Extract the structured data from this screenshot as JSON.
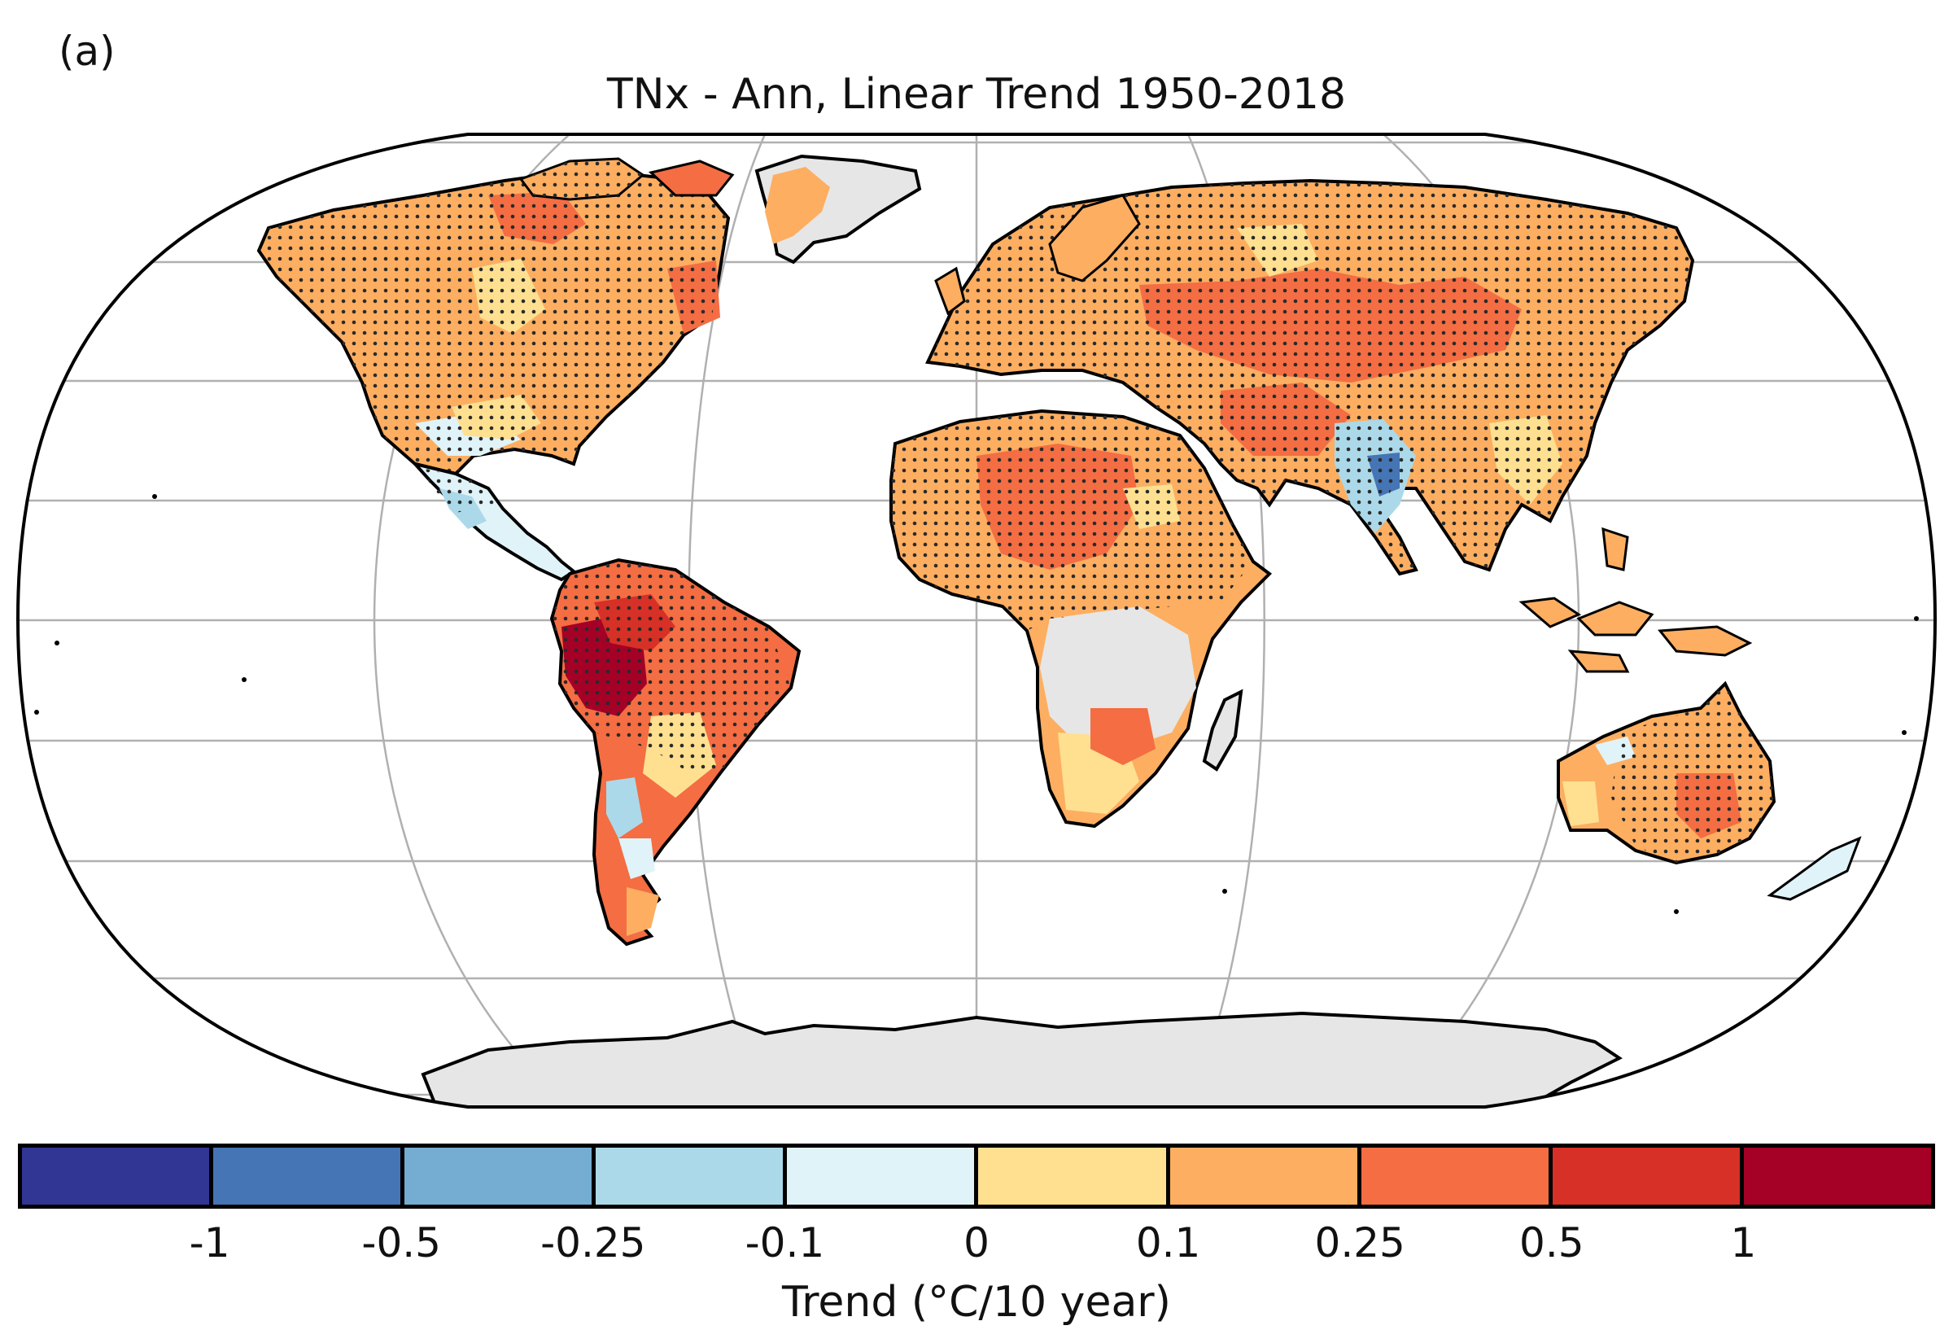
{
  "panel_label": "(a)",
  "title": "TNx - Ann, Linear Trend 1950-2018",
  "colorbar": {
    "label": "Trend (°C/10 year)",
    "colors": [
      "#313695",
      "#4575b4",
      "#74add1",
      "#abd9e9",
      "#e0f3f8",
      "#fee090",
      "#fdae61",
      "#f46d43",
      "#d73027",
      "#a50026"
    ],
    "tick_labels": [
      "-1",
      "-0.5",
      "-0.25",
      "-0.1",
      "0",
      "0.1",
      "0.25",
      "0.5",
      "1"
    ]
  },
  "map": {
    "projection": "Robinson",
    "no_data_color": "#e6e6e6",
    "stippling": "dots mark significant trends",
    "graticule": "grey"
  }
}
